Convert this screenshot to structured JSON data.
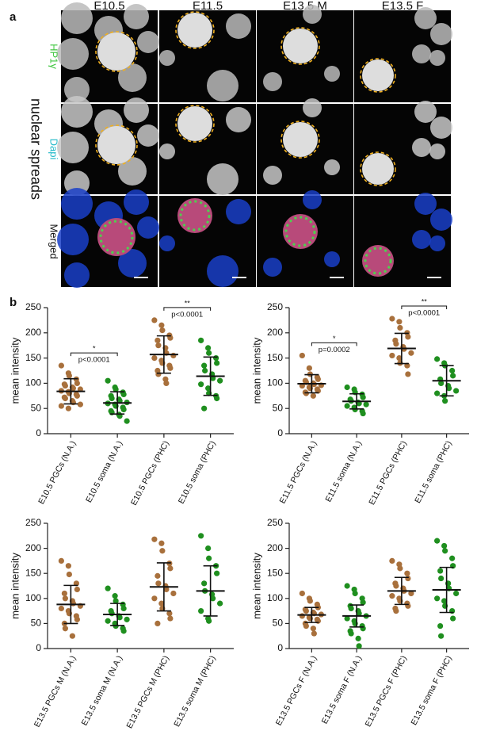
{
  "panel_a": {
    "label": "a",
    "side_label": "nuclear spreads",
    "columns": [
      "E10.5",
      "E11.5",
      "E13.5 M",
      "E13.5 F"
    ],
    "rows": [
      "HP1γ",
      "Dapi",
      "Merged"
    ]
  },
  "panel_b": {
    "label": "b"
  },
  "chart_data": [
    {
      "type": "strip",
      "ylabel": "mean intensity",
      "ylim": [
        0,
        250
      ],
      "yticks": [
        0,
        50,
        100,
        150,
        200,
        250
      ],
      "categories": [
        "E10.5 PGCs (N.A.)",
        "E10.5 soma (N.A.)",
        "E10.5 PGCs (PHC)",
        "E10.5 soma (PHC)"
      ],
      "groups": [
        {
          "color": "#a8703c",
          "mean": 84,
          "sd": 25,
          "values": [
            135,
            120,
            115,
            108,
            100,
            98,
            95,
            92,
            90,
            88,
            85,
            83,
            80,
            78,
            75,
            72,
            70,
            65,
            62,
            58,
            55,
            50
          ]
        },
        {
          "color": "#1f8f1f",
          "mean": 61,
          "sd": 22,
          "values": [
            105,
            92,
            88,
            82,
            78,
            75,
            70,
            68,
            65,
            62,
            60,
            58,
            55,
            52,
            48,
            45,
            42,
            38,
            35,
            25
          ]
        },
        {
          "color": "#a8703c",
          "mean": 157,
          "sd": 37,
          "values": [
            225,
            215,
            205,
            195,
            190,
            185,
            175,
            170,
            160,
            155,
            150,
            145,
            140,
            135,
            130,
            125,
            118,
            108,
            100
          ]
        },
        {
          "color": "#1f8f1f",
          "mean": 114,
          "sd": 38,
          "values": [
            185,
            170,
            160,
            150,
            140,
            135,
            125,
            118,
            110,
            105,
            98,
            90,
            80,
            75,
            70,
            50
          ]
        }
      ],
      "comparisons": [
        {
          "from": 0,
          "to": 1,
          "stars": "*",
          "p": "p<0.0001"
        },
        {
          "from": 2,
          "to": 3,
          "stars": "**",
          "p": "p<0.0001"
        }
      ]
    },
    {
      "type": "strip",
      "ylabel": "mean intensity",
      "ylim": [
        0,
        250
      ],
      "yticks": [
        0,
        50,
        100,
        150,
        200,
        250
      ],
      "categories": [
        "E11.5 PGCs (N.A.)",
        "E11.5 soma (N.A.)",
        "E11.5 PGCs (PHC)",
        "E11.5 soma (PHC)"
      ],
      "groups": [
        {
          "color": "#a8703c",
          "mean": 99,
          "sd": 18,
          "values": [
            155,
            130,
            118,
            112,
            108,
            105,
            102,
            100,
            98,
            96,
            95,
            92,
            90,
            88,
            85,
            82,
            80,
            75
          ]
        },
        {
          "color": "#1f8f1f",
          "mean": 64,
          "sd": 15,
          "values": [
            92,
            88,
            82,
            78,
            72,
            68,
            65,
            62,
            60,
            58,
            55,
            52,
            48,
            45,
            40
          ]
        },
        {
          "color": "#a8703c",
          "mean": 169,
          "sd": 30,
          "values": [
            228,
            222,
            210,
            200,
            192,
            185,
            178,
            172,
            168,
            160,
            155,
            150,
            140,
            135,
            118
          ]
        },
        {
          "color": "#1f8f1f",
          "mean": 105,
          "sd": 30,
          "values": [
            148,
            140,
            135,
            125,
            115,
            108,
            100,
            95,
            90,
            85,
            80,
            75,
            65
          ]
        }
      ],
      "comparisons": [
        {
          "from": 0,
          "to": 1,
          "stars": "*",
          "p": "p=0.0002"
        },
        {
          "from": 2,
          "to": 3,
          "stars": "**",
          "p": "p<0.0001"
        }
      ]
    },
    {
      "type": "strip",
      "ylabel": "mean intensity",
      "ylim": [
        0,
        250
      ],
      "yticks": [
        0,
        50,
        100,
        150,
        200,
        250
      ],
      "categories": [
        "E13.5 PGCs M (N.A.)",
        "E13.5 soma M (N.A.)",
        "E13.5 PGCs M (PHC)",
        "E13.5 soma M (PHC)"
      ],
      "groups": [
        {
          "color": "#a8703c",
          "mean": 88,
          "sd": 38,
          "values": [
            175,
            165,
            148,
            130,
            118,
            110,
            100,
            95,
            90,
            85,
            80,
            75,
            70,
            65,
            58,
            50,
            40,
            25
          ]
        },
        {
          "color": "#1f8f1f",
          "mean": 68,
          "sd": 22,
          "values": [
            120,
            105,
            95,
            88,
            80,
            75,
            70,
            65,
            62,
            58,
            55,
            50,
            45,
            40,
            35
          ]
        },
        {
          "color": "#a8703c",
          "mean": 123,
          "sd": 48,
          "values": [
            218,
            210,
            195,
            170,
            160,
            145,
            130,
            125,
            118,
            110,
            100,
            90,
            80,
            70,
            60,
            50
          ]
        },
        {
          "color": "#1f8f1f",
          "mean": 115,
          "sd": 50,
          "values": [
            225,
            200,
            180,
            165,
            150,
            130,
            115,
            108,
            100,
            90,
            75,
            60,
            55
          ]
        }
      ]
    },
    {
      "type": "strip",
      "ylabel": "mean intensity",
      "ylim": [
        0,
        250
      ],
      "yticks": [
        0,
        50,
        100,
        150,
        200,
        250
      ],
      "categories": [
        "E13.5 PGCs F (N.A.)",
        "E13.5 soma F (N.A.)",
        "E13.5 PGCs F (PHC)",
        "E13.5 soma F (PHC)"
      ],
      "groups": [
        {
          "color": "#a8703c",
          "mean": 67,
          "sd": 15,
          "values": [
            110,
            100,
            95,
            88,
            82,
            78,
            75,
            72,
            70,
            68,
            65,
            62,
            60,
            58,
            55,
            50,
            45,
            40,
            30
          ]
        },
        {
          "color": "#1f8f1f",
          "mean": 65,
          "sd": 22,
          "values": [
            125,
            118,
            110,
            100,
            92,
            85,
            80,
            75,
            70,
            65,
            60,
            55,
            50,
            45,
            40,
            35,
            30,
            20,
            5
          ]
        },
        {
          "color": "#a8703c",
          "mean": 115,
          "sd": 27,
          "values": [
            175,
            168,
            160,
            150,
            140,
            130,
            125,
            120,
            115,
            110,
            105,
            100,
            95,
            90,
            85,
            80,
            75
          ]
        },
        {
          "color": "#1f8f1f",
          "mean": 117,
          "sd": 45,
          "values": [
            215,
            205,
            195,
            180,
            165,
            155,
            140,
            130,
            120,
            110,
            100,
            95,
            85,
            75,
            60,
            45,
            25
          ]
        }
      ]
    }
  ]
}
